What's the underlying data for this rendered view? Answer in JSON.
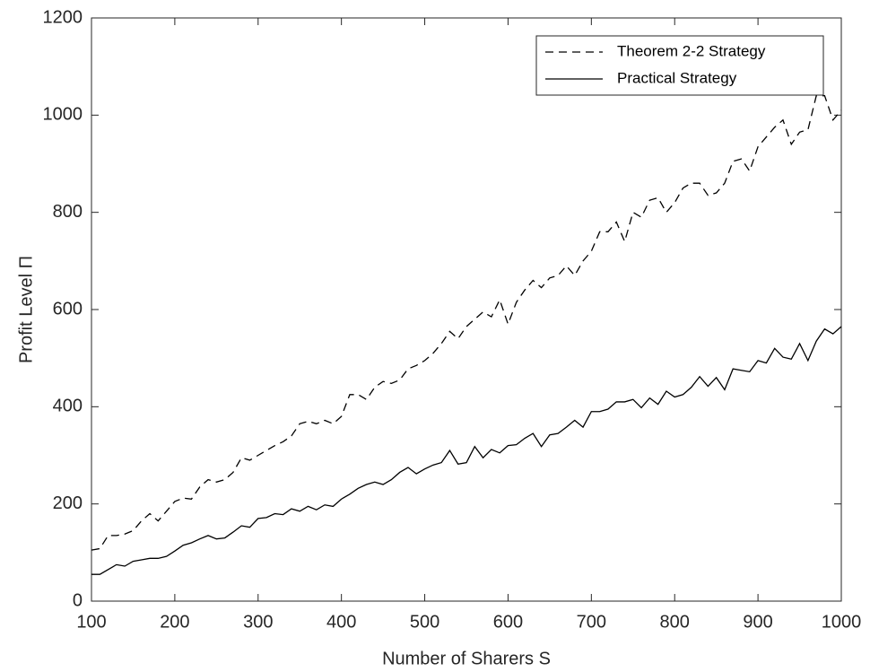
{
  "chart_data": {
    "type": "line",
    "xlabel": "Number of Sharers S",
    "ylabel": "Profit Level Π",
    "x": [
      100,
      110,
      120,
      130,
      140,
      150,
      160,
      170,
      180,
      190,
      200,
      210,
      220,
      230,
      240,
      250,
      260,
      270,
      280,
      290,
      300,
      310,
      320,
      330,
      340,
      350,
      360,
      370,
      380,
      390,
      400,
      410,
      420,
      430,
      440,
      450,
      460,
      470,
      480,
      490,
      500,
      510,
      520,
      530,
      540,
      550,
      560,
      570,
      580,
      590,
      600,
      610,
      620,
      630,
      640,
      650,
      660,
      670,
      680,
      690,
      700,
      710,
      720,
      730,
      740,
      750,
      760,
      770,
      780,
      790,
      800,
      810,
      820,
      830,
      840,
      850,
      860,
      870,
      880,
      890,
      900,
      910,
      920,
      930,
      940,
      950,
      960,
      970,
      980,
      990,
      1000
    ],
    "series": [
      {
        "name": "Theorem 2-2 Strategy",
        "color": "#000000",
        "linestyle": "dashed",
        "values": [
          105,
          108,
          135,
          135,
          138,
          145,
          165,
          180,
          165,
          185,
          205,
          212,
          210,
          235,
          250,
          245,
          250,
          265,
          295,
          290,
          300,
          310,
          320,
          328,
          340,
          365,
          370,
          365,
          372,
          365,
          380,
          425,
          425,
          415,
          440,
          452,
          448,
          455,
          478,
          485,
          495,
          510,
          530,
          555,
          540,
          565,
          580,
          595,
          585,
          620,
          570,
          615,
          640,
          660,
          645,
          665,
          670,
          690,
          670,
          700,
          720,
          760,
          760,
          780,
          740,
          800,
          790,
          825,
          830,
          800,
          820,
          850,
          860,
          860,
          835,
          840,
          860,
          905,
          910,
          885,
          935,
          955,
          975,
          990,
          940,
          965,
          970,
          1040,
          1040,
          990,
          1010
        ]
      },
      {
        "name": "Practical Strategy",
        "color": "#000000",
        "linestyle": "solid",
        "values": [
          55,
          55,
          65,
          75,
          72,
          82,
          85,
          88,
          88,
          92,
          103,
          115,
          120,
          128,
          135,
          128,
          130,
          142,
          155,
          152,
          170,
          172,
          180,
          178,
          190,
          185,
          195,
          188,
          198,
          195,
          210,
          220,
          232,
          240,
          245,
          240,
          250,
          265,
          275,
          262,
          272,
          280,
          285,
          310,
          282,
          285,
          318,
          295,
          312,
          305,
          320,
          322,
          335,
          345,
          318,
          342,
          345,
          358,
          372,
          358,
          390,
          390,
          395,
          410,
          410,
          415,
          398,
          418,
          405,
          432,
          420,
          425,
          440,
          462,
          442,
          460,
          435,
          478,
          475,
          472,
          495,
          490,
          520,
          502,
          498,
          530,
          495,
          535,
          560,
          550,
          565
        ]
      }
    ],
    "xlim": [
      100,
      1000
    ],
    "xticks": [
      100,
      200,
      300,
      400,
      500,
      600,
      700,
      800,
      900,
      1000
    ],
    "ylim": [
      0,
      1200
    ],
    "yticks": [
      0,
      200,
      400,
      600,
      800,
      1000,
      1200
    ],
    "legend": "northeast"
  }
}
